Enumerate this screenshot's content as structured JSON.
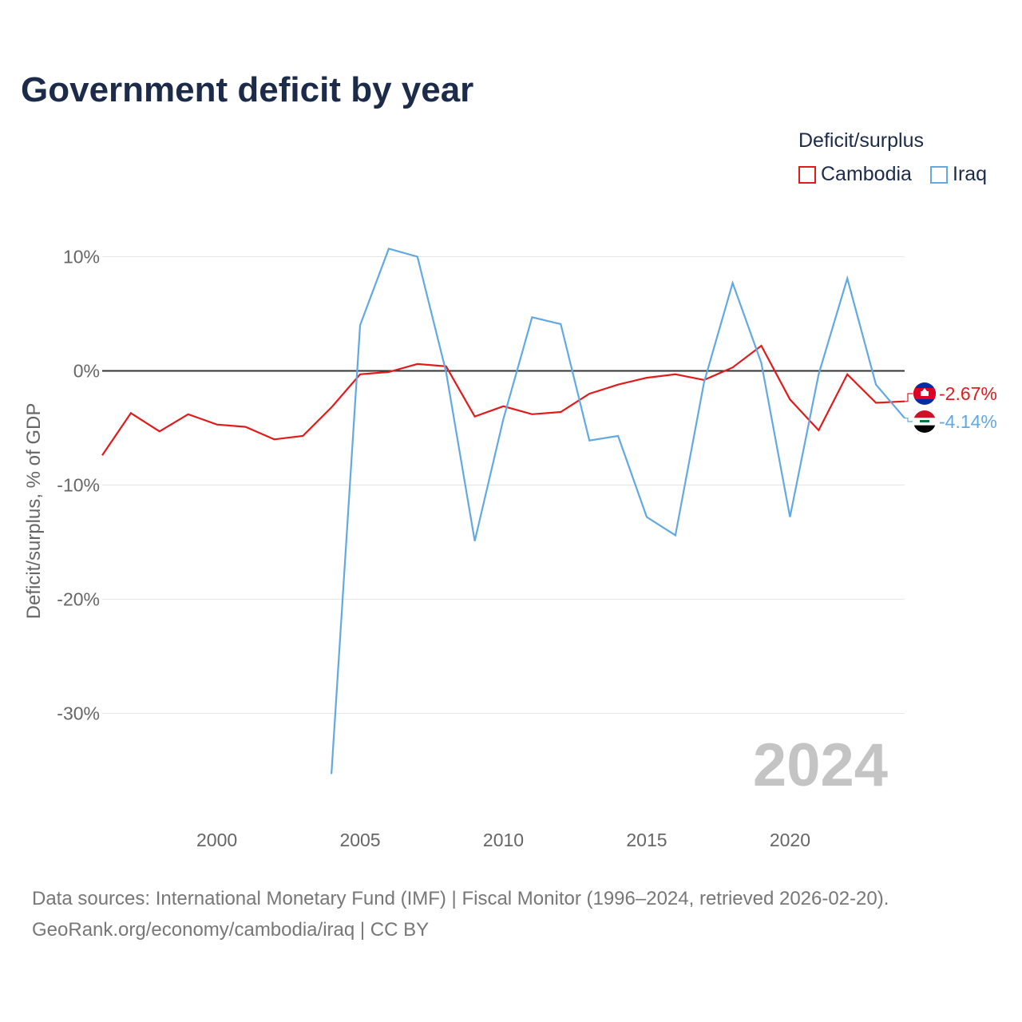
{
  "title": "Government deficit by year",
  "legend": {
    "title": "Deficit/surplus",
    "items": [
      {
        "label": "Cambodia",
        "color": "#e11b1b"
      },
      {
        "label": "Iraq",
        "color": "#62a9e3"
      }
    ]
  },
  "chart_data": {
    "type": "line",
    "title": "Government deficit by year",
    "ylabel": "Deficit/surplus, % of GDP",
    "xlabel": "",
    "xlim": [
      1996,
      2024
    ],
    "ylim": [
      -37,
      13
    ],
    "y_ticks": [
      10,
      0,
      -10,
      -20,
      -30
    ],
    "y_tick_labels": [
      "10%",
      "0%",
      "-10%",
      "-20%",
      "-30%"
    ],
    "x_ticks": [
      2000,
      2005,
      2010,
      2015,
      2020
    ],
    "x_tick_labels": [
      "2000",
      "2005",
      "2010",
      "2015",
      "2020"
    ],
    "year_label": "2024",
    "series": [
      {
        "name": "Cambodia",
        "color": "#e11b1b",
        "end_label": "-2.67%",
        "x": [
          1996,
          1997,
          1998,
          1999,
          2000,
          2001,
          2002,
          2003,
          2004,
          2005,
          2006,
          2007,
          2008,
          2009,
          2010,
          2011,
          2012,
          2013,
          2014,
          2015,
          2016,
          2017,
          2018,
          2019,
          2020,
          2021,
          2022,
          2023,
          2024
        ],
        "y": [
          -7.4,
          -3.7,
          -5.3,
          -3.8,
          -4.7,
          -4.9,
          -6.0,
          -5.7,
          -3.2,
          -0.3,
          -0.1,
          0.6,
          0.4,
          -4.0,
          -3.1,
          -3.8,
          -3.6,
          -2.0,
          -1.2,
          -0.6,
          -0.3,
          -0.8,
          0.3,
          2.2,
          -2.5,
          -5.2,
          -0.3,
          -2.8,
          -2.67
        ]
      },
      {
        "name": "Iraq",
        "color": "#62a9e3",
        "end_label": "-4.14%",
        "x": [
          2004,
          2005,
          2006,
          2007,
          2008,
          2009,
          2010,
          2011,
          2012,
          2013,
          2014,
          2015,
          2016,
          2017,
          2018,
          2019,
          2020,
          2021,
          2022,
          2023,
          2024
        ],
        "y": [
          -35.3,
          4.0,
          10.7,
          10.0,
          -0.1,
          -14.9,
          -4.2,
          4.7,
          4.1,
          -6.1,
          -5.7,
          -12.8,
          -14.4,
          -1.0,
          7.7,
          0.7,
          -12.8,
          -0.3,
          8.1,
          -1.2,
          -4.14
        ]
      }
    ]
  },
  "footer": {
    "line1": "Data sources: International Monetary Fund (IMF) | Fiscal Monitor (1996–2024, retrieved 2026-02-20).",
    "line2": "GeoRank.org/economy/cambodia/iraq | CC BY"
  }
}
